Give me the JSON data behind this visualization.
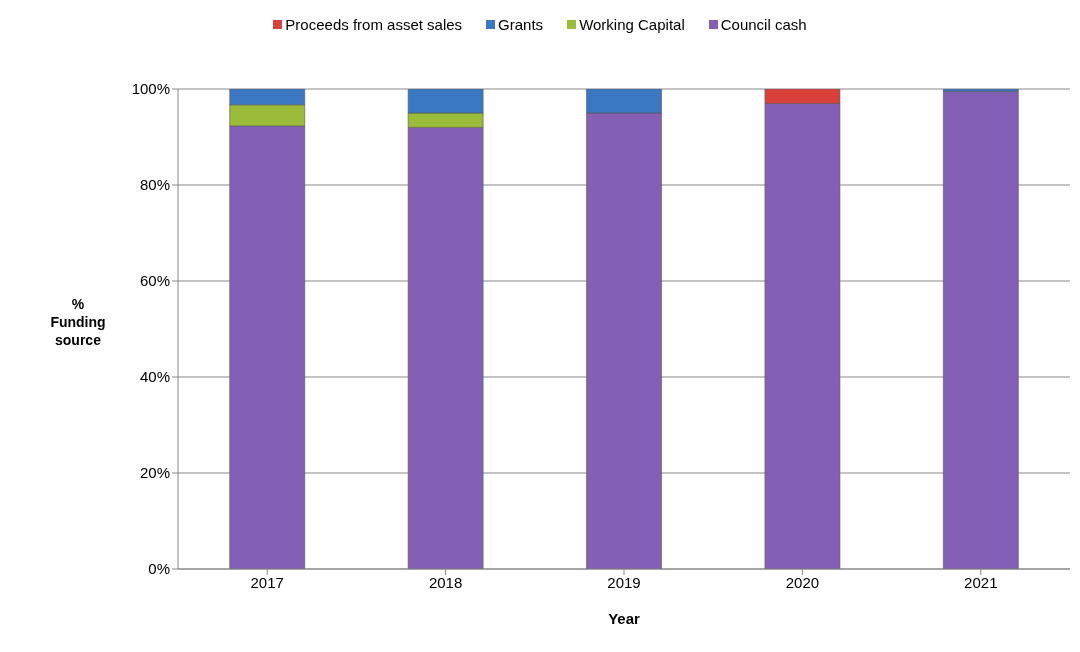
{
  "chart_data": {
    "type": "bar",
    "stacked": true,
    "xlabel": "Year",
    "ylabel": "% Funding source",
    "categories": [
      "2017",
      "2018",
      "2019",
      "2020",
      "2021"
    ],
    "series": [
      {
        "name": "Council cash",
        "color": "#8360b5",
        "values": [
          92.3,
          92,
          95,
          97,
          99.5
        ]
      },
      {
        "name": "Working Capital",
        "color": "#9bbb3b",
        "values": [
          4.4,
          3,
          0,
          0,
          0
        ]
      },
      {
        "name": "Grants",
        "color": "#3a78c3",
        "values": [
          3.3,
          5,
          5,
          0,
          0.5
        ]
      },
      {
        "name": "Proceeds from asset sales",
        "color": "#d9403a",
        "values": [
          0,
          0,
          0,
          3,
          0
        ]
      }
    ],
    "ylim": [
      0,
      100
    ],
    "yticks": [
      {
        "value": 0,
        "label": "0%"
      },
      {
        "value": 20,
        "label": "20%"
      },
      {
        "value": 40,
        "label": "40%"
      },
      {
        "value": 60,
        "label": "60%"
      },
      {
        "value": 80,
        "label": "80%"
      },
      {
        "value": 100,
        "label": "100%"
      }
    ],
    "grid": "y",
    "legend": "top"
  }
}
